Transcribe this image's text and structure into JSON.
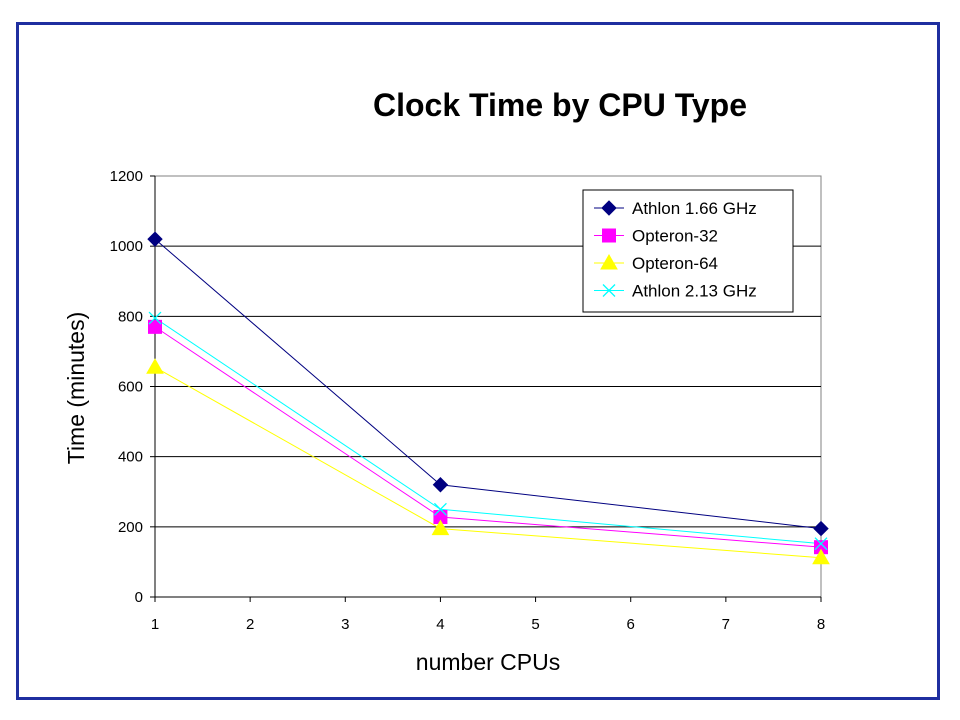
{
  "chart_data": {
    "type": "line",
    "title": "Clock Time by CPU Type",
    "xlabel": "number CPUs",
    "ylabel": "Time (minutes)",
    "categories": [
      "1",
      "2",
      "3",
      "4",
      "5",
      "6",
      "7",
      "8"
    ],
    "ylim": [
      0,
      1200
    ],
    "yticks": [
      "0",
      "200",
      "400",
      "600",
      "800",
      "1000",
      "1200"
    ],
    "grid": "horizontal",
    "legend_position": "top-right",
    "series": [
      {
        "name": "Athlon 1.66 GHz",
        "color": "#000080",
        "marker": "diamond",
        "x": [
          "1",
          "4",
          "8"
        ],
        "y": [
          1020,
          320,
          195
        ]
      },
      {
        "name": "Opteron-32",
        "color": "#ff00ff",
        "marker": "square",
        "x": [
          "1",
          "4",
          "8"
        ],
        "y": [
          770,
          228,
          142
        ]
      },
      {
        "name": "Opteron-64",
        "color": "#ffff00",
        "marker": "triangle",
        "x": [
          "1",
          "4",
          "8"
        ],
        "y": [
          655,
          195,
          112
        ]
      },
      {
        "name": "Athlon 2.13 GHz",
        "color": "#00ffff",
        "marker": "x",
        "x": [
          "1",
          "4",
          "8"
        ],
        "y": [
          795,
          250,
          152
        ]
      }
    ]
  }
}
